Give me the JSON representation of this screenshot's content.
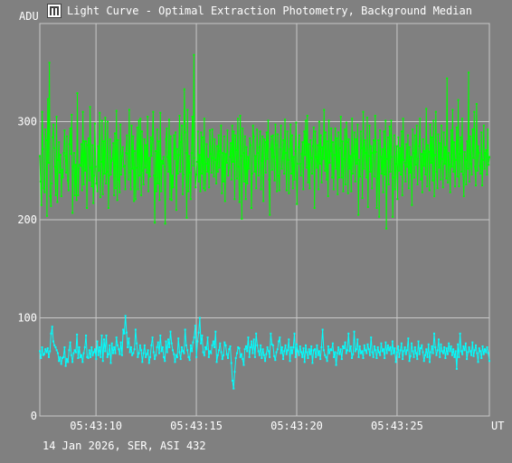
{
  "window": {
    "title": "Light Curve - Optimal Extraction Photometry, Background Median",
    "icon": "app-icon"
  },
  "footer_text": "14 Jan 2026, SER, ASI 432",
  "colors": {
    "background": "#808080",
    "grid": "#c8c8c8",
    "text": "#ffffff",
    "signal": "#00ff00",
    "background_series": "#00ffff"
  },
  "chart_data": {
    "type": "line",
    "title": "Light Curve - Optimal Extraction Photometry, Background Median",
    "xlabel": "UT",
    "ylabel": "ADU",
    "ylim": [
      0,
      400
    ],
    "xlim": [
      "05:43:07.2",
      "05:43:29.6"
    ],
    "yticks": [
      0,
      100,
      200,
      300
    ],
    "xticks": [
      "05:43:10",
      "05:43:15",
      "05:43:20",
      "05:43:25"
    ],
    "grid": true,
    "series": [
      {
        "color": "#00ff00",
        "values": [
          265,
          239,
          215,
          310,
          272,
          232,
          228,
          292,
          281,
          204,
          323,
          258,
          360,
          224,
          214,
          237,
          284,
          297,
          273,
          254,
          225,
          305,
          218,
          261,
          279,
          248,
          266,
          224,
          251,
          243,
          268,
          291,
          265,
          248,
          285,
          240,
          230,
          277,
          293,
          267,
          307,
          207,
          254,
          268,
          225,
          256,
          220,
          329,
          225,
          252,
          256,
          255,
          277,
          230,
          310,
          236,
          280,
          250,
          280,
          212,
          276,
          283,
          240,
          315,
          253,
          234,
          276,
          217,
          245,
          298,
          254,
          237,
          229,
          275,
          250,
          309,
          223,
          259,
          301,
          226,
          280,
          247,
          304,
          237,
          249,
          300,
          212,
          245,
          282,
          246,
          260,
          262,
          278,
          225,
          288,
          232,
          311,
          220,
          281,
          241,
          228,
          297,
          246,
          265,
          274,
          254,
          255,
          231,
          268,
          286,
          267,
          241,
          312,
          248,
          231,
          296,
          252,
          285,
          219,
          270,
          221,
          253,
          294,
          231,
          301,
          245,
          303,
          225,
          290,
          250,
          236,
          282,
          253,
          276,
          248,
          305,
          229,
          263,
          244,
          284,
          265,
          282,
          310,
          245,
          197,
          270,
          229,
          292,
          237,
          280,
          220,
          309,
          229,
          260,
          257,
          264,
          254,
          196,
          282,
          293,
          264,
          249,
          302,
          221,
          285,
          220,
          245,
          233,
          286,
          262,
          289,
          210,
          272,
          247,
          266,
          306,
          249,
          279,
          296,
          226,
          246,
          333,
          289,
          268,
          202,
          312,
          229,
          265,
          248,
          221,
          268,
          305,
          255,
          368,
          263,
          233,
          246,
          259,
          290,
          239,
          266,
          229,
          289,
          247,
          284,
          232,
          303,
          230,
          257,
          277,
          249,
          262,
          233,
          291,
          267,
          248,
          292,
          263,
          244,
          282,
          261,
          237,
          275,
          249,
          286,
          253,
          270,
          296,
          227,
          268,
          239,
          285,
          219,
          267,
          258,
          291,
          245,
          253,
          264,
          278,
          241,
          296,
          259,
          290,
          221,
          286,
          271,
          242,
          303,
          254,
          218,
          306,
          265,
          201,
          293,
          268,
          239,
          285,
          221,
          274,
          237,
          264,
          252,
          283,
          276,
          212,
          247,
          296,
          285,
          249,
          265,
          232,
          292,
          268,
          245,
          274,
          290,
          231,
          260,
          285,
          219,
          282,
          279,
          248,
          289,
          262,
          301,
          241,
          205,
          272,
          285,
          251,
          286,
          264,
          240,
          297,
          276,
          229,
          287,
          245,
          230,
          272,
          296,
          252,
          263,
          281,
          247,
          302,
          268,
          230,
          290,
          261,
          227,
          272,
          297,
          247,
          286,
          232,
          264,
          241,
          270,
          299,
          216,
          257,
          274,
          286,
          257,
          245,
          267,
          279,
          231,
          290,
          266,
          301,
          253,
          306,
          238,
          277,
          232,
          281,
          263,
          247,
          275,
          294,
          212,
          290,
          264,
          253,
          276,
          231,
          300,
          257,
          286,
          238,
          274,
          262,
          312,
          250,
          289,
          241,
          280,
          224,
          301,
          258,
          270,
          293,
          243,
          279,
          231,
          266,
          293,
          252,
          283,
          226,
          289,
          243,
          273,
          305,
          243,
          280,
          229,
          262,
          292,
          236,
          299,
          279,
          227,
          282,
          252,
          265,
          229,
          303,
          247,
          267,
          289,
          239,
          282,
          257,
          297,
          205,
          261,
          244,
          290,
          273,
          222,
          310,
          252,
          281,
          268,
          243,
          304,
          213,
          265,
          296,
          249,
          275,
          232,
          268,
          281,
          244,
          306,
          269,
          212,
          242,
          281,
          203,
          291,
          264,
          247,
          272,
          228,
          290,
          246,
          301,
          191,
          262,
          284,
          236,
          295,
          249,
          301,
          264,
          203,
          243,
          286,
          231,
          257,
          275,
          221,
          284,
          250,
          273,
          246,
          290,
          225,
          303,
          261,
          258,
          239,
          277,
          254,
          286,
          232,
          274,
          248,
          264,
          215,
          292,
          268,
          243,
          286,
          256,
          296,
          236,
          262,
          275,
          303,
          241,
          267,
          228,
          282,
          255,
          270,
          246,
          313,
          234,
          276,
          269,
          230,
          297,
          258,
          284,
          240,
          301,
          224,
          266,
          310,
          249,
          232,
          287,
          253,
          278,
          241,
          296,
          262,
          233,
          289,
          257,
          274,
          242,
          344,
          238,
          268,
          256,
          228,
          291,
          254,
          312,
          249,
          279,
          234,
          261,
          294,
          244,
          322,
          234,
          267,
          284,
          249,
          303,
          246,
          224,
          269,
          261,
          236,
          280,
          252,
          350,
          239,
          285,
          257,
          246,
          292,
          263,
          310,
          254,
          235,
          318,
          250,
          275,
          268,
          255,
          247,
          289,
          235,
          261,
          296,
          252,
          268,
          271,
          246,
          292,
          256,
          264
        ]
      },
      {
        "color": "#00ffff",
        "values": [
          66,
          59,
          70,
          62,
          63,
          68,
          65,
          69,
          60,
          66,
          84,
          91,
          76,
          72,
          70,
          67,
          64,
          56,
          60,
          53,
          59,
          60,
          70,
          51,
          58,
          55,
          67,
          75,
          62,
          55,
          64,
          67,
          65,
          83,
          59,
          70,
          60,
          62,
          55,
          64,
          70,
          82,
          60,
          59,
          67,
          60,
          70,
          62,
          65,
          68,
          58,
          76,
          62,
          70,
          60,
          82,
          56,
          78,
          66,
          82,
          60,
          63,
          72,
          54,
          74,
          64,
          70,
          64,
          80,
          72,
          68,
          63,
          75,
          62,
          88,
          84,
          102,
          85,
          70,
          79,
          65,
          70,
          62,
          64,
          68,
          88,
          74,
          60,
          64,
          72,
          67,
          55,
          64,
          72,
          60,
          63,
          67,
          54,
          60,
          72,
          80,
          65,
          58,
          62,
          70,
          75,
          64,
          82,
          66,
          70,
          60,
          56,
          76,
          65,
          78,
          70,
          86,
          74,
          67,
          63,
          55,
          62,
          60,
          79,
          65,
          58,
          70,
          66,
          64,
          88,
          72,
          67,
          60,
          57,
          72,
          66,
          75,
          80,
          92,
          60,
          76,
          85,
          100,
          74,
          82,
          65,
          62,
          70,
          68,
          80,
          60,
          66,
          64,
          72,
          76,
          70,
          86,
          55,
          62,
          67,
          74,
          65,
          58,
          62,
          75,
          72,
          63,
          59,
          68,
          71,
          54,
          36,
          28,
          45,
          59,
          64,
          70,
          69,
          60,
          63,
          58,
          52,
          68,
          71,
          66,
          80,
          60,
          70,
          76,
          64,
          78,
          60,
          84,
          72,
          66,
          62,
          72,
          59,
          68,
          62,
          56,
          63,
          70,
          66,
          60,
          84,
          73,
          72,
          61,
          57,
          65,
          68,
          76,
          80,
          64,
          70,
          58,
          66,
          72,
          63,
          67,
          78,
          56,
          70,
          64,
          70,
          84,
          60,
          73,
          66,
          62,
          71,
          65,
          60,
          69,
          55,
          72,
          65,
          59,
          68,
          63,
          71,
          54,
          67,
          68,
          60,
          72,
          62,
          66,
          58,
          70,
          88,
          67,
          62,
          60,
          56,
          71,
          64,
          68,
          67,
          74,
          60,
          65,
          52,
          64,
          70,
          63,
          68,
          58,
          71,
          69,
          75,
          64,
          67,
          84,
          66,
          71,
          59,
          63,
          86,
          66,
          68,
          78,
          60,
          71,
          64,
          66,
          59,
          72,
          67,
          64,
          73,
          68,
          62,
          80,
          65,
          60,
          71,
          67,
          59,
          70,
          65,
          62,
          74,
          66,
          68,
          59,
          75,
          64,
          72,
          67,
          70,
          63,
          76,
          64,
          69,
          55,
          65,
          71,
          60,
          67,
          74,
          58,
          66,
          70,
          63,
          67,
          79,
          56,
          61,
          74,
          66,
          60,
          70,
          64,
          58,
          76,
          63,
          69,
          72,
          65,
          56,
          62,
          68,
          60,
          73,
          55,
          65,
          71,
          64,
          84,
          70,
          62,
          67,
          78,
          60,
          73,
          66,
          64,
          70,
          59,
          69,
          63,
          74,
          66,
          71,
          62,
          68,
          60,
          66,
          48,
          73,
          60,
          84,
          66,
          63,
          71,
          67,
          74,
          58,
          65,
          70,
          66,
          62,
          75,
          61,
          67,
          72,
          64,
          55,
          69,
          66,
          59,
          71,
          63,
          68,
          65,
          70,
          64,
          56
        ]
      }
    ]
  }
}
